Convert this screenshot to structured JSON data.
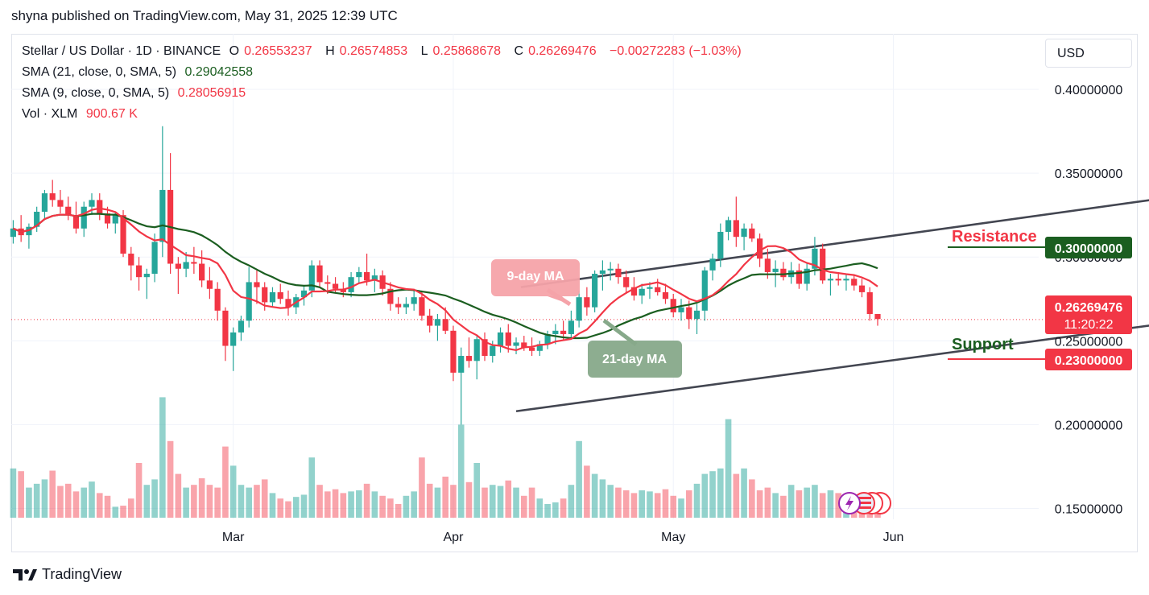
{
  "header": {
    "publisher": "shyna published on TradingView.com, May 31, 2025 12:39 UTC"
  },
  "legend": {
    "symbol": "Stellar / US Dollar · 1D · BINANCE",
    "o_label": "O",
    "o": "0.26553237",
    "h_label": "H",
    "h": "0.26574853",
    "l_label": "L",
    "l": "0.25868678",
    "c_label": "C",
    "c": "0.26269476",
    "change": "−0.00272283 (−1.03%)",
    "sma21_label": "SMA (21, close, 0, SMA, 5)",
    "sma21_value": "0.29042558",
    "sma9_label": "SMA (9, close, 0, SMA, 5)",
    "sma9_value": "0.28056915",
    "vol_label": "Vol · XLM",
    "vol_value": "900.67 K"
  },
  "currency_button": "USD",
  "annotations": {
    "resistance": "Resistance",
    "support": "Support",
    "ma9": "9-day MA",
    "ma21": "21-day MA"
  },
  "price_labels": {
    "resistance": "0.30000000",
    "support": "0.23000000",
    "last": "0.26269476",
    "countdown": "11:20:22"
  },
  "footer": {
    "brand": "TradingView"
  },
  "colors": {
    "up": "#26a69a",
    "down": "#f23645",
    "sma21": "#1b5e20",
    "sma9": "#f23645",
    "channel": "#434651",
    "resistance_line": "#1b5e20",
    "support_line": "#f23645"
  },
  "chart_data": {
    "type": "candlestick",
    "y_axis_ticks": [
      "0.40000000",
      "0.35000000",
      "0.30000000",
      "0.25000000",
      "0.20000000",
      "0.15000000"
    ],
    "y_tick_values": [
      0.4,
      0.35,
      0.3,
      0.25,
      0.2,
      0.15
    ],
    "ylim": [
      0.127,
      0.412
    ],
    "x_axis_ticks": [
      "Mar",
      "Apr",
      "May",
      "Jun"
    ],
    "x_tick_days": [
      28,
      56,
      84,
      112
    ],
    "start_date": "2025-02-01",
    "candles": [
      [
        0.312,
        0.322,
        0.308,
        0.317
      ],
      [
        0.317,
        0.325,
        0.309,
        0.313
      ],
      [
        0.313,
        0.32,
        0.305,
        0.318
      ],
      [
        0.318,
        0.33,
        0.315,
        0.327
      ],
      [
        0.327,
        0.34,
        0.322,
        0.338
      ],
      [
        0.338,
        0.346,
        0.33,
        0.334
      ],
      [
        0.334,
        0.34,
        0.326,
        0.33
      ],
      [
        0.33,
        0.336,
        0.322,
        0.325
      ],
      [
        0.325,
        0.333,
        0.314,
        0.317
      ],
      [
        0.317,
        0.333,
        0.312,
        0.33
      ],
      [
        0.33,
        0.338,
        0.325,
        0.334
      ],
      [
        0.334,
        0.338,
        0.322,
        0.326
      ],
      [
        0.326,
        0.33,
        0.317,
        0.32
      ],
      [
        0.32,
        0.327,
        0.314,
        0.325
      ],
      [
        0.325,
        0.328,
        0.3,
        0.302
      ],
      [
        0.302,
        0.306,
        0.286,
        0.295
      ],
      [
        0.295,
        0.3,
        0.28,
        0.288
      ],
      [
        0.288,
        0.293,
        0.275,
        0.29
      ],
      [
        0.29,
        0.314,
        0.285,
        0.309
      ],
      [
        0.309,
        0.378,
        0.3,
        0.34
      ],
      [
        0.34,
        0.362,
        0.29,
        0.296
      ],
      [
        0.296,
        0.3,
        0.278,
        0.293
      ],
      [
        0.293,
        0.303,
        0.288,
        0.297
      ],
      [
        0.297,
        0.306,
        0.29,
        0.296
      ],
      [
        0.296,
        0.304,
        0.282,
        0.286
      ],
      [
        0.286,
        0.294,
        0.275,
        0.281
      ],
      [
        0.281,
        0.285,
        0.262,
        0.268
      ],
      [
        0.268,
        0.27,
        0.238,
        0.247
      ],
      [
        0.247,
        0.258,
        0.232,
        0.255
      ],
      [
        0.255,
        0.265,
        0.25,
        0.262
      ],
      [
        0.262,
        0.294,
        0.258,
        0.285
      ],
      [
        0.285,
        0.292,
        0.272,
        0.282
      ],
      [
        0.282,
        0.285,
        0.268,
        0.273
      ],
      [
        0.273,
        0.282,
        0.27,
        0.279
      ],
      [
        0.279,
        0.284,
        0.272,
        0.275
      ],
      [
        0.275,
        0.28,
        0.265,
        0.27
      ],
      [
        0.27,
        0.278,
        0.266,
        0.276
      ],
      [
        0.276,
        0.283,
        0.271,
        0.28
      ],
      [
        0.28,
        0.298,
        0.276,
        0.295
      ],
      [
        0.295,
        0.298,
        0.282,
        0.285
      ],
      [
        0.285,
        0.289,
        0.278,
        0.284
      ],
      [
        0.284,
        0.288,
        0.279,
        0.281
      ],
      [
        0.281,
        0.285,
        0.276,
        0.279
      ],
      [
        0.279,
        0.291,
        0.276,
        0.288
      ],
      [
        0.288,
        0.294,
        0.284,
        0.291
      ],
      [
        0.291,
        0.302,
        0.283,
        0.286
      ],
      [
        0.286,
        0.293,
        0.279,
        0.289
      ],
      [
        0.289,
        0.292,
        0.277,
        0.281
      ],
      [
        0.281,
        0.285,
        0.268,
        0.272
      ],
      [
        0.272,
        0.276,
        0.266,
        0.27
      ],
      [
        0.27,
        0.276,
        0.266,
        0.272
      ],
      [
        0.272,
        0.28,
        0.268,
        0.276
      ],
      [
        0.276,
        0.28,
        0.262,
        0.265
      ],
      [
        0.265,
        0.269,
        0.255,
        0.259
      ],
      [
        0.259,
        0.266,
        0.25,
        0.263
      ],
      [
        0.263,
        0.27,
        0.254,
        0.256
      ],
      [
        0.256,
        0.259,
        0.226,
        0.231
      ],
      [
        0.231,
        0.246,
        0.2,
        0.241
      ],
      [
        0.241,
        0.252,
        0.234,
        0.238
      ],
      [
        0.238,
        0.253,
        0.227,
        0.251
      ],
      [
        0.251,
        0.255,
        0.238,
        0.241
      ],
      [
        0.241,
        0.25,
        0.237,
        0.247
      ],
      [
        0.247,
        0.258,
        0.243,
        0.255
      ],
      [
        0.255,
        0.26,
        0.243,
        0.247
      ],
      [
        0.247,
        0.252,
        0.242,
        0.249
      ],
      [
        0.249,
        0.253,
        0.244,
        0.246
      ],
      [
        0.246,
        0.252,
        0.241,
        0.244
      ],
      [
        0.244,
        0.25,
        0.241,
        0.248
      ],
      [
        0.248,
        0.256,
        0.245,
        0.254
      ],
      [
        0.254,
        0.26,
        0.248,
        0.256
      ],
      [
        0.256,
        0.262,
        0.25,
        0.254
      ],
      [
        0.254,
        0.268,
        0.252,
        0.262
      ],
      [
        0.262,
        0.28,
        0.258,
        0.276
      ],
      [
        0.276,
        0.282,
        0.265,
        0.27
      ],
      [
        0.27,
        0.292,
        0.267,
        0.29
      ],
      [
        0.29,
        0.298,
        0.28,
        0.292
      ],
      [
        0.292,
        0.297,
        0.286,
        0.293
      ],
      [
        0.293,
        0.296,
        0.284,
        0.288
      ],
      [
        0.288,
        0.292,
        0.278,
        0.282
      ],
      [
        0.282,
        0.288,
        0.274,
        0.277
      ],
      [
        0.277,
        0.284,
        0.272,
        0.281
      ],
      [
        0.281,
        0.285,
        0.275,
        0.282
      ],
      [
        0.282,
        0.287,
        0.277,
        0.279
      ],
      [
        0.279,
        0.284,
        0.272,
        0.275
      ],
      [
        0.275,
        0.278,
        0.264,
        0.267
      ],
      [
        0.267,
        0.275,
        0.262,
        0.27
      ],
      [
        0.27,
        0.274,
        0.257,
        0.263
      ],
      [
        0.263,
        0.272,
        0.254,
        0.268
      ],
      [
        0.268,
        0.294,
        0.262,
        0.292
      ],
      [
        0.292,
        0.302,
        0.286,
        0.299
      ],
      [
        0.299,
        0.32,
        0.294,
        0.315
      ],
      [
        0.315,
        0.324,
        0.31,
        0.322
      ],
      [
        0.322,
        0.336,
        0.306,
        0.312
      ],
      [
        0.312,
        0.32,
        0.304,
        0.317
      ],
      [
        0.317,
        0.32,
        0.309,
        0.311
      ],
      [
        0.311,
        0.314,
        0.294,
        0.299
      ],
      [
        0.299,
        0.305,
        0.287,
        0.291
      ],
      [
        0.291,
        0.298,
        0.282,
        0.293
      ],
      [
        0.293,
        0.297,
        0.286,
        0.288
      ],
      [
        0.288,
        0.297,
        0.284,
        0.292
      ],
      [
        0.292,
        0.296,
        0.281,
        0.284
      ],
      [
        0.284,
        0.296,
        0.28,
        0.293
      ],
      [
        0.293,
        0.312,
        0.289,
        0.305
      ],
      [
        0.305,
        0.308,
        0.284,
        0.286
      ],
      [
        0.286,
        0.29,
        0.277,
        0.287
      ],
      [
        0.287,
        0.291,
        0.283,
        0.286
      ],
      [
        0.286,
        0.29,
        0.28,
        0.287
      ],
      [
        0.287,
        0.289,
        0.28,
        0.283
      ],
      [
        0.283,
        0.287,
        0.276,
        0.279
      ],
      [
        0.279,
        0.282,
        0.262,
        0.266
      ],
      [
        0.266,
        0.266,
        0.259,
        0.263
      ]
    ],
    "volumes": [
      0.9,
      0.85,
      0.55,
      0.62,
      0.7,
      0.86,
      0.58,
      0.62,
      0.48,
      0.55,
      0.66,
      0.45,
      0.4,
      0.2,
      0.22,
      0.35,
      1.0,
      0.6,
      0.7,
      2.2,
      1.4,
      0.8,
      0.55,
      0.6,
      0.72,
      0.6,
      0.55,
      1.3,
      0.95,
      0.6,
      0.55,
      0.6,
      0.7,
      0.45,
      0.35,
      0.3,
      0.38,
      0.42,
      1.1,
      0.6,
      0.48,
      0.52,
      0.45,
      0.48,
      0.5,
      0.62,
      0.48,
      0.4,
      0.35,
      0.25,
      0.4,
      0.48,
      1.1,
      0.62,
      0.55,
      0.75,
      0.6,
      1.7,
      0.65,
      1.0,
      0.55,
      0.6,
      0.58,
      0.68,
      0.55,
      0.4,
      0.55,
      0.35,
      0.25,
      0.28,
      0.35,
      0.6,
      1.4,
      0.95,
      0.8,
      0.7,
      0.6,
      0.55,
      0.5,
      0.45,
      0.5,
      0.48,
      0.45,
      0.52,
      0.4,
      0.35,
      0.5,
      0.62,
      0.8,
      0.85,
      0.9,
      1.8,
      0.8,
      0.9,
      0.7,
      0.5,
      0.55,
      0.45,
      0.4,
      0.6,
      0.5,
      0.55,
      0.6,
      0.45,
      0.5,
      0.45,
      0.35,
      0.4,
      0.38,
      0.35,
      0.25
    ],
    "up_color": "#26a69a",
    "down_color": "#f23645",
    "sma_lines": [
      "SMA (21, close, 0, SMA, 5)",
      "SMA (9, close, 0, SMA, 5)"
    ],
    "channel_upper": [
      [
        64.6,
        0.282
      ],
      [
        154,
        0.34
      ]
    ],
    "channel_lower": [
      [
        64,
        0.208
      ],
      [
        157,
        0.267
      ]
    ],
    "resistance": 0.3,
    "support": 0.23,
    "last_price": 0.26269476,
    "grid": true
  }
}
